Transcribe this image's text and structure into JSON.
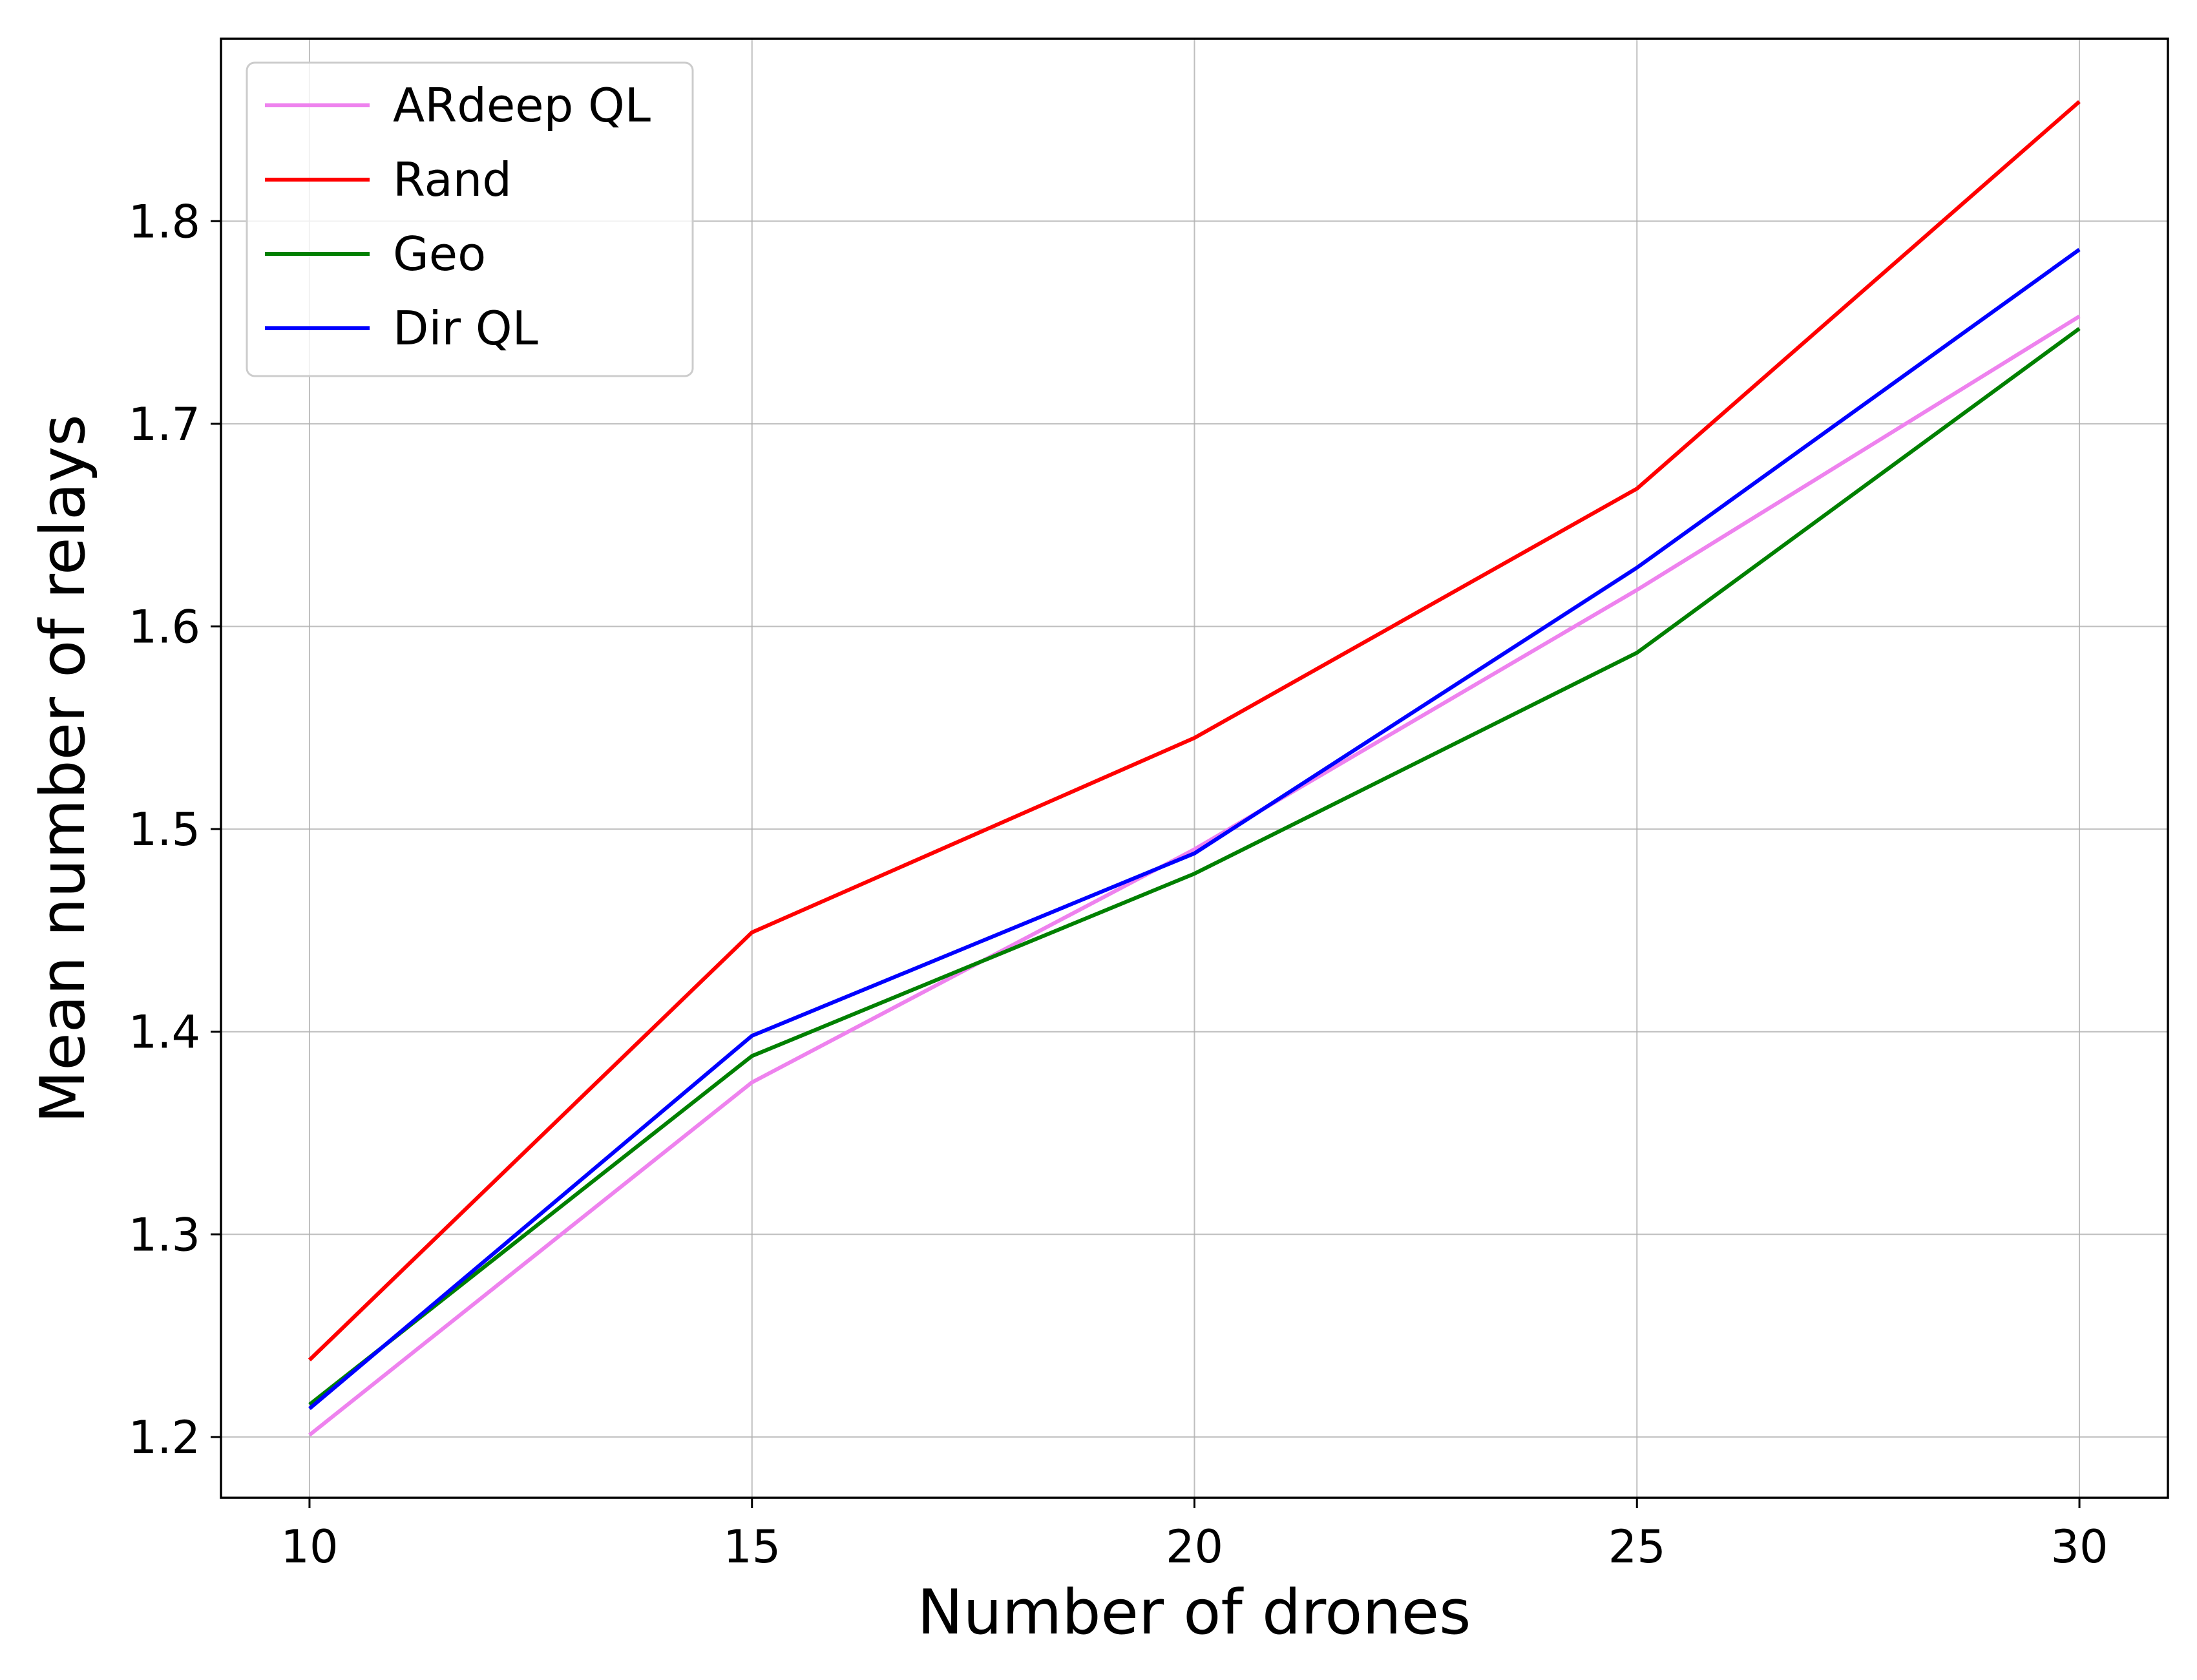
{
  "chart_data": {
    "type": "line",
    "xlabel": "Number of drones",
    "ylabel": "Mean number of relays",
    "xlim": [
      9,
      31
    ],
    "ylim": [
      1.17,
      1.89
    ],
    "xticks": [
      10,
      15,
      20,
      25,
      30
    ],
    "yticks": [
      1.2,
      1.3,
      1.4,
      1.5,
      1.6,
      1.7,
      1.8
    ],
    "grid": true,
    "legend_position": "top-left",
    "x": [
      10,
      15,
      20,
      25,
      30
    ],
    "series": [
      {
        "name": "ARdeep QL",
        "color": "#ee82ee",
        "values": [
          1.201,
          1.375,
          1.49,
          1.618,
          1.753
        ]
      },
      {
        "name": "Rand",
        "color": "#ff0000",
        "values": [
          1.238,
          1.449,
          1.545,
          1.668,
          1.859
        ]
      },
      {
        "name": "Geo",
        "color": "#008000",
        "values": [
          1.216,
          1.388,
          1.478,
          1.587,
          1.747
        ]
      },
      {
        "name": "Dir QL",
        "color": "#0000ff",
        "values": [
          1.214,
          1.398,
          1.488,
          1.629,
          1.786
        ]
      }
    ]
  }
}
